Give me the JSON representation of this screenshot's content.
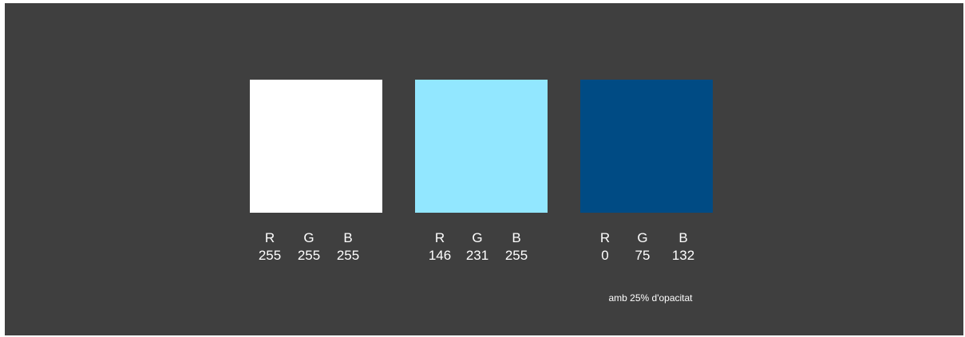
{
  "swatches": [
    {
      "color": "#ffffff",
      "r_label": "R",
      "g_label": "G",
      "b_label": "B",
      "r": "255",
      "g": "255",
      "b": "255"
    },
    {
      "color": "#92e7ff",
      "r_label": "R",
      "g_label": "G",
      "b_label": "B",
      "r": "146",
      "g": "231",
      "b": "255"
    },
    {
      "color": "#004b84",
      "r_label": "R",
      "g_label": "G",
      "b_label": "B",
      "r": "0",
      "g": "75",
      "b": "132"
    }
  ],
  "note": "amb 25% d'opacitat",
  "background_color": "#3f3f3f"
}
